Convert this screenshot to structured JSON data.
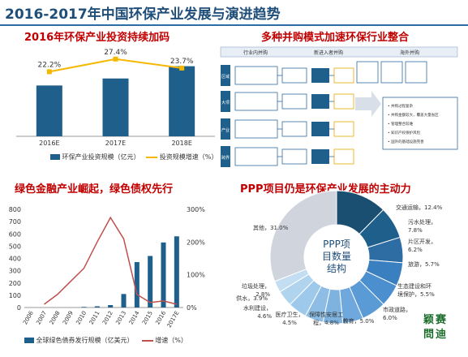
{
  "page_title": "2016-2017年中国环保产业发展与演进趋势",
  "panels": {
    "investment": {
      "title": "2016年环保产业投资持续加码",
      "legend": {
        "bar": "环保产业投资规模（亿元）",
        "line": "投资规模增速（%）"
      }
    },
    "mna": {
      "title": "多种并购模式加速环保行业整合",
      "columns": [
        "行业内并购",
        "新进入者并购",
        "海外并购"
      ],
      "row_labels": [
        "区域并购",
        "大项目",
        "产业链并购",
        "跨界并购"
      ],
      "right_notes": [
        "并购过程复杂",
        "并购金额较大，覆盖大量省区",
        "管理整合较难",
        "知识产权保护风险",
        "国外的基础设施完善"
      ]
    },
    "green_finance": {
      "title": "绿色金融产业崛起，绿色债权先行",
      "legend": {
        "bar": "全球绿色债券发行规模（亿美元）",
        "line": "增速（%）"
      }
    },
    "ppp": {
      "title": "PPP项目仍是环保产业发展的主动力",
      "center_label": [
        "PPP项",
        "目数量",
        "结构"
      ],
      "slice_labels": [
        "交通运输，12.4%",
        "污水处理，7.8%",
        "片区开发，6.2%",
        "旅游，5.7%",
        "生态建设和环境保护，5.5%",
        "市政道路，6.0%",
        "教育，5.0%",
        "医疗卫生，4.8%",
        "保障性安居工程，4.5%",
        "水利建设，4.6%",
        "供水，3.9%",
        "垃圾处理，2.8%",
        "其他，31.0%"
      ]
    }
  },
  "brand_text": [
    "颖赛",
    "問迪"
  ],
  "colors": {
    "bar": "#1f5f8b",
    "line_gold": "#f5b800",
    "line_red": "#c0504d",
    "title_red": "#c00000",
    "title_blue": "#1f4e79"
  },
  "chart_data": [
    {
      "type": "bar",
      "categories": [
        "2016E",
        "2017E",
        "2018E"
      ],
      "series": [
        {
          "name": "环保产业投资规模（亿元）",
          "values": [
            58,
            66,
            80
          ]
        },
        {
          "name": "投资规模增速（%）",
          "values": [
            22.2,
            27.4,
            23.7
          ],
          "type": "line"
        }
      ],
      "data_labels": [
        "22.2%",
        "27.4%",
        "23.7%"
      ],
      "ylim": [
        0,
        100
      ]
    },
    {
      "type": "bar",
      "categories": [
        "2006",
        "2007",
        "2008",
        "2009",
        "2010",
        "2011",
        "2012",
        "2013",
        "2014",
        "2015",
        "2016",
        "2017E"
      ],
      "y_ticks": [
        0,
        100,
        200,
        300,
        400,
        500,
        600,
        700,
        800
      ],
      "y2_ticks": [
        "0%",
        "100%",
        "200%",
        "300%"
      ],
      "series": [
        {
          "name": "全球绿色债券发行规模（亿美元）",
          "values": [
            0,
            0,
            0,
            0,
            5,
            10,
            20,
            110,
            370,
            420,
            530,
            580
          ]
        },
        {
          "name": "增速（%）",
          "axis": "right",
          "type": "line",
          "values": [
            null,
            10,
            40,
            80,
            120,
            200,
            275,
            210,
            40,
            15,
            20,
            10
          ]
        }
      ],
      "ylim": [
        0,
        800
      ],
      "y2lim": [
        0,
        300
      ]
    },
    {
      "type": "pie",
      "labels": [
        "交通运输",
        "污水处理",
        "片区开发",
        "旅游",
        "生态建设和环境保护",
        "市政道路",
        "教育",
        "医疗卫生",
        "保障性安居工程",
        "水利建设",
        "供水",
        "垃圾处理",
        "其他"
      ],
      "values": [
        12.4,
        7.8,
        6.2,
        5.7,
        5.5,
        6.0,
        5.0,
        4.8,
        4.5,
        4.6,
        3.9,
        2.8,
        31.0
      ]
    }
  ]
}
